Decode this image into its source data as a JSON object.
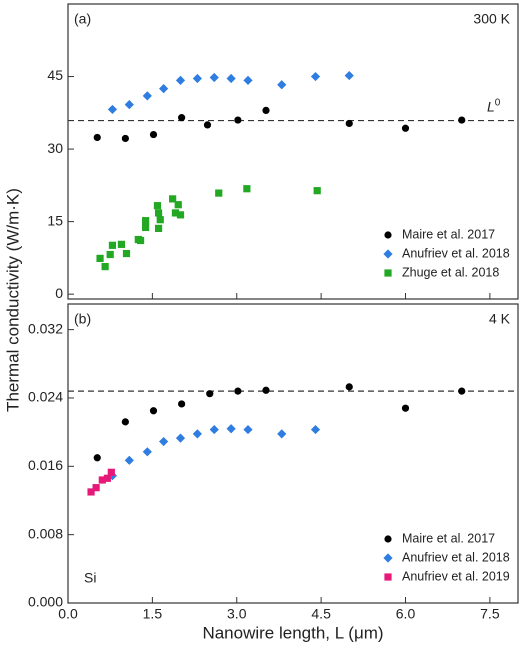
{
  "chart_data": [
    {
      "type": "scatter",
      "panel_label": "(a)",
      "condition": "300 K",
      "ylabel": "Thermal conductivity (W/m·K)",
      "xlim": [
        0,
        8
      ],
      "ylim": [
        -1,
        60
      ],
      "yticks": [
        0,
        15,
        30,
        45
      ],
      "reference_line": {
        "value": 35.9,
        "label": "L",
        "label_sup": "0"
      },
      "legend": "lower right",
      "series": [
        {
          "name": "Maire et al. 2017",
          "color": "#000000",
          "marker": "circle",
          "x": [
            0.52,
            1.02,
            1.52,
            2.02,
            2.48,
            3.02,
            3.52,
            5.0,
            6.0,
            7.0
          ],
          "values": [
            32.4,
            32.2,
            33.0,
            36.5,
            35.0,
            36.0,
            38.0,
            35.3,
            34.3,
            36.0
          ]
        },
        {
          "name": "Anufriev et al. 2018",
          "color": "#2f7de1",
          "marker": "diamond",
          "x": [
            0.79,
            1.09,
            1.41,
            1.7,
            2.0,
            2.3,
            2.6,
            2.9,
            3.2,
            3.8,
            4.4,
            5.0
          ],
          "values": [
            38.2,
            39.2,
            41.0,
            42.5,
            44.2,
            44.6,
            44.8,
            44.6,
            44.2,
            43.3,
            45.0,
            45.2
          ]
        },
        {
          "name": "Zhuge et al. 2018",
          "color": "#22a822",
          "marker": "square",
          "x": [
            0.57,
            0.66,
            0.75,
            0.79,
            0.95,
            1.04,
            1.25,
            1.29,
            1.38,
            1.38,
            1.59,
            1.61,
            1.61,
            1.64,
            1.86,
            1.91,
            1.96,
            2.0,
            2.68,
            3.18,
            4.43
          ],
          "values": [
            7.4,
            5.7,
            8.2,
            10.1,
            10.3,
            8.4,
            11.3,
            11.1,
            15.2,
            13.8,
            18.3,
            16.8,
            13.6,
            15.4,
            19.7,
            16.8,
            18.5,
            16.4,
            20.9,
            21.8,
            21.4
          ]
        }
      ]
    },
    {
      "type": "scatter",
      "panel_label": "(b)",
      "condition": "4 K",
      "material": "Si",
      "xlabel": "Nanowire length, L (μm)",
      "xlim": [
        0,
        8
      ],
      "ylim": [
        0,
        0.035
      ],
      "xticks": [
        {
          "value": 0,
          "label": "0.0"
        },
        {
          "value": 1.5,
          "label": "1.5"
        },
        {
          "value": 3,
          "label": "3.0"
        },
        {
          "value": 4.5,
          "label": "4.5"
        },
        {
          "value": 6,
          "label": "6.0"
        },
        {
          "value": 7.5,
          "label": "7.5"
        }
      ],
      "yticks": [
        {
          "value": 0,
          "label": "0.000"
        },
        {
          "value": 0.008,
          "label": "0.008"
        },
        {
          "value": 0.016,
          "label": "0.016"
        },
        {
          "value": 0.024,
          "label": "0.024"
        },
        {
          "value": 0.032,
          "label": "0.032"
        }
      ],
      "reference_line": {
        "value": 0.0248
      },
      "legend": "lower right",
      "series": [
        {
          "name": "Maire et al. 2017",
          "color": "#000000",
          "marker": "circle",
          "x": [
            0.52,
            1.02,
            1.52,
            2.02,
            2.52,
            3.02,
            3.52,
            5.0,
            6.0,
            7.0
          ],
          "values": [
            0.017,
            0.0212,
            0.0225,
            0.0233,
            0.0245,
            0.0248,
            0.0249,
            0.0253,
            0.0228,
            0.0248
          ]
        },
        {
          "name": "Anufriev et al. 2018",
          "color": "#2f7de1",
          "marker": "diamond",
          "x": [
            0.79,
            1.09,
            1.41,
            1.7,
            2.0,
            2.3,
            2.6,
            2.9,
            3.2,
            3.8,
            4.4
          ],
          "values": [
            0.0149,
            0.0167,
            0.0177,
            0.0189,
            0.0193,
            0.0198,
            0.0203,
            0.0204,
            0.0203,
            0.0198,
            0.0203
          ]
        },
        {
          "name": "Anufriev et al. 2019",
          "color": "#e6197a",
          "marker": "square",
          "x": [
            0.41,
            0.5,
            0.61,
            0.7,
            0.77
          ],
          "values": [
            0.013,
            0.0135,
            0.0144,
            0.0146,
            0.0153
          ]
        }
      ]
    }
  ]
}
